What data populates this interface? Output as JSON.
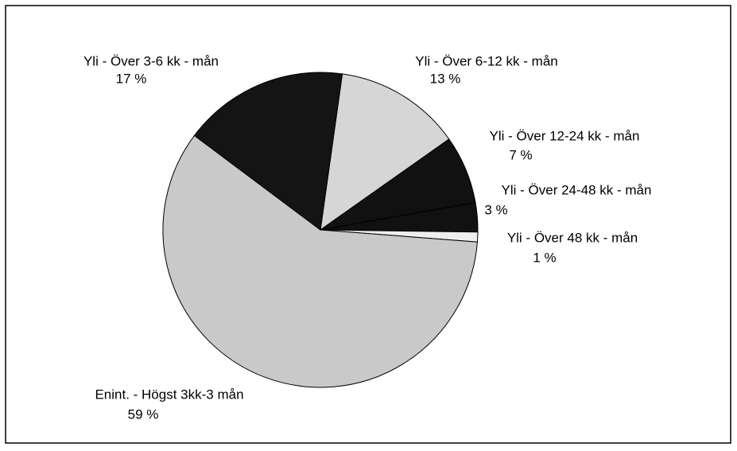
{
  "chart_data": {
    "type": "pie",
    "categories": [
      "Yli - Över 6-12 kk - mån",
      "Yli - Över 12-24 kk - mån",
      "Yli - Över 24-48 kk - mån",
      "Yli - Över 48 kk - mån",
      "Enint. - Högst 3kk-3 mån",
      "Yli - Över 3-6 kk - mån"
    ],
    "values": [
      13,
      7,
      3,
      1,
      59,
      17
    ],
    "value_labels": [
      "13 %",
      "7 %",
      "3 %",
      "1 %",
      "59 %",
      "17 %"
    ],
    "colors": [
      "#d6d6d6",
      "#111111",
      "#111111",
      "#eeeeee",
      "#c9c9c9",
      "#141414"
    ]
  }
}
